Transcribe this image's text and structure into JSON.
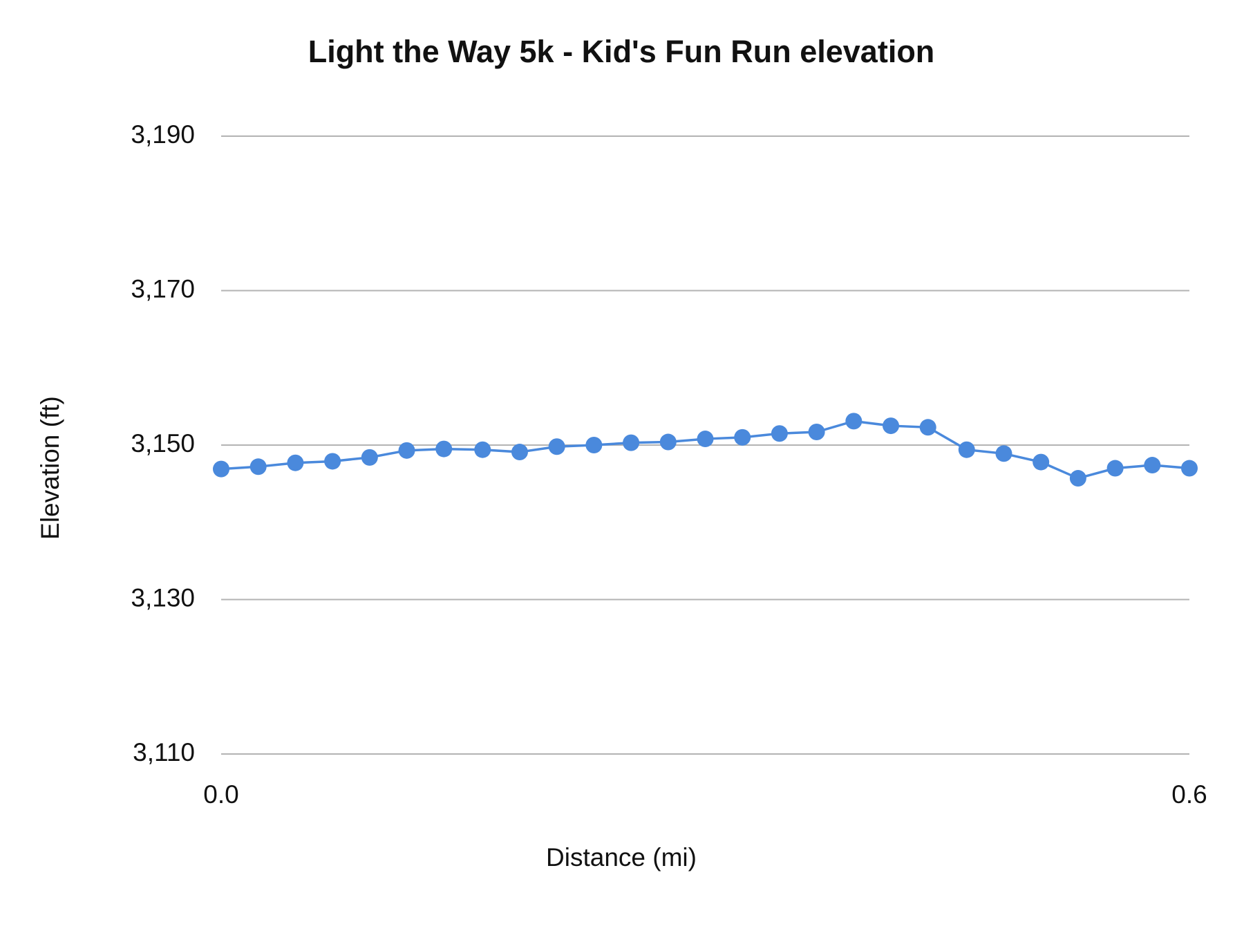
{
  "chart_data": {
    "type": "line",
    "title": "Light the Way 5k - Kid's Fun Run elevation",
    "x_label": "Distance (mi)",
    "y_label": "Elevation (ft)",
    "x": [
      0,
      0.023,
      0.046,
      0.069,
      0.092,
      0.115,
      0.138,
      0.162,
      0.185,
      0.208,
      0.231,
      0.254,
      0.277,
      0.3,
      0.323,
      0.346,
      0.369,
      0.392,
      0.415,
      0.438,
      0.462,
      0.485,
      0.508,
      0.531,
      0.554,
      0.577,
      0.6
    ],
    "series": [
      {
        "name": "Elevation (ft)",
        "color": "#4a89dc",
        "values": [
          3146.9,
          3147.2,
          3147.7,
          3147.9,
          3148.4,
          3149.3,
          3149.5,
          3149.4,
          3149.1,
          3149.8,
          3150.0,
          3150.3,
          3150.4,
          3150.8,
          3151.0,
          3151.5,
          3151.7,
          3153.1,
          3152.5,
          3152.3,
          3149.4,
          3148.9,
          3147.8,
          3145.7,
          3147.0,
          3147.4,
          3147.0
        ]
      }
    ],
    "xlim": [
      0,
      0.6
    ],
    "xticks": [
      {
        "value": 0,
        "label": "0.0"
      },
      0.6
    ],
    "ylim": [
      3110,
      3190
    ],
    "yticks": [
      {
        "value": 3110,
        "label": "3,110"
      },
      {
        "value": 3130,
        "label": "3,130"
      },
      {
        "value": 3150,
        "label": "3,150"
      },
      {
        "value": 3170,
        "label": "3,170"
      },
      {
        "value": 3190,
        "label": "3,190"
      }
    ],
    "grid": true
  }
}
